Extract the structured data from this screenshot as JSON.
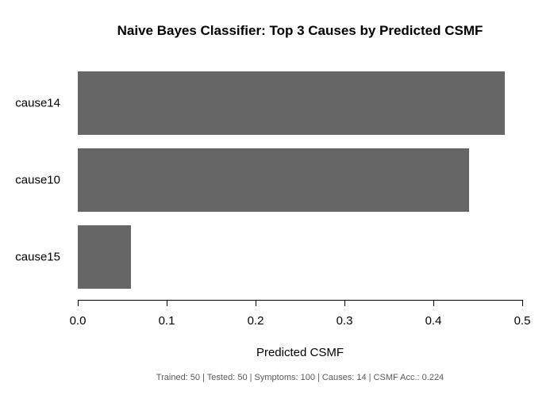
{
  "chart_data": {
    "type": "bar",
    "orientation": "horizontal",
    "title": "Naive Bayes Classifier: Top 3 Causes by Predicted CSMF",
    "categories": [
      "cause14",
      "cause10",
      "cause15"
    ],
    "values": [
      0.48,
      0.44,
      0.06
    ],
    "xlabel": "Predicted CSMF",
    "xlim": [
      0,
      0.5
    ],
    "x_ticks": [
      "0.0",
      "0.1",
      "0.2",
      "0.3",
      "0.4",
      "0.5"
    ],
    "bar_color": "#666666",
    "grid": false,
    "legend": "none"
  },
  "footer": {
    "stats": "Trained: 50 | Tested: 50 | Symptoms: 100 | Causes: 14 | CSMF Acc.: 0.224",
    "color": "#595959"
  }
}
